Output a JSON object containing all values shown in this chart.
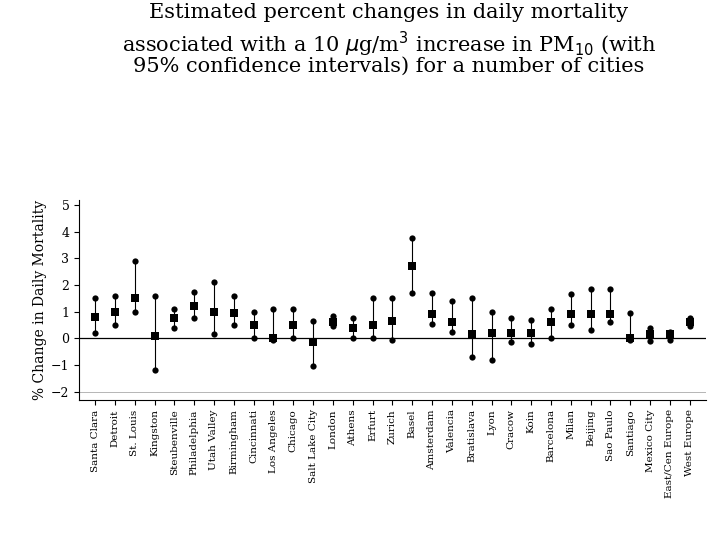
{
  "ylabel": "% Change in Daily Mortality",
  "ylim": [
    -2.3,
    5.2
  ],
  "yticks": [
    -2,
    -1,
    0,
    1,
    2,
    3,
    4,
    5
  ],
  "cities": [
    "Santa Clara",
    "Detroit",
    "St. Louis",
    "Kingston",
    "Steubenville",
    "Philadelphia",
    "Utah Valley",
    "Birmingham",
    "Cincinnati",
    "Los Angeles",
    "Chicago",
    "Salt Lake City",
    "London",
    "Athens",
    "Erfurt",
    "Zurich",
    "Basel",
    "Amsterdam",
    "Valencia",
    "Bratislava",
    "Lyon",
    "Cracow",
    "Koin",
    "Barcelona",
    "Milan",
    "Beijing",
    "Sao Paulo",
    "Santiago",
    "Mexico City",
    "East/Cen Europe",
    "West Europe"
  ],
  "estimates": [
    0.8,
    1.0,
    1.5,
    0.1,
    0.75,
    1.2,
    1.0,
    0.95,
    0.5,
    0.0,
    0.5,
    -0.15,
    0.6,
    0.4,
    0.5,
    0.65,
    2.7,
    0.9,
    0.6,
    0.15,
    0.2,
    0.2,
    0.2,
    0.6,
    0.9,
    0.9,
    0.9,
    0.0,
    0.15,
    0.15,
    0.6
  ],
  "ci_low": [
    0.2,
    0.5,
    1.0,
    -1.2,
    0.4,
    0.75,
    0.15,
    0.5,
    0.0,
    -0.05,
    0.0,
    -1.05,
    0.45,
    0.0,
    0.0,
    -0.05,
    1.7,
    0.55,
    0.25,
    -0.7,
    -0.8,
    -0.15,
    -0.2,
    0.0,
    0.5,
    0.3,
    0.6,
    -0.05,
    -0.1,
    -0.05,
    0.45
  ],
  "ci_high": [
    1.5,
    1.6,
    2.9,
    1.6,
    1.1,
    1.75,
    2.1,
    1.6,
    1.0,
    1.1,
    1.1,
    0.65,
    0.85,
    0.75,
    1.5,
    1.5,
    3.75,
    1.7,
    1.4,
    1.5,
    1.0,
    0.75,
    0.7,
    1.1,
    1.65,
    1.85,
    1.85,
    0.95,
    0.4,
    0.25,
    0.75
  ],
  "bg_color": "#ffffff",
  "line_color": "#000000",
  "marker_color": "#000000",
  "title_fontsize": 15,
  "label_fontsize": 7.5,
  "ylabel_fontsize": 10
}
